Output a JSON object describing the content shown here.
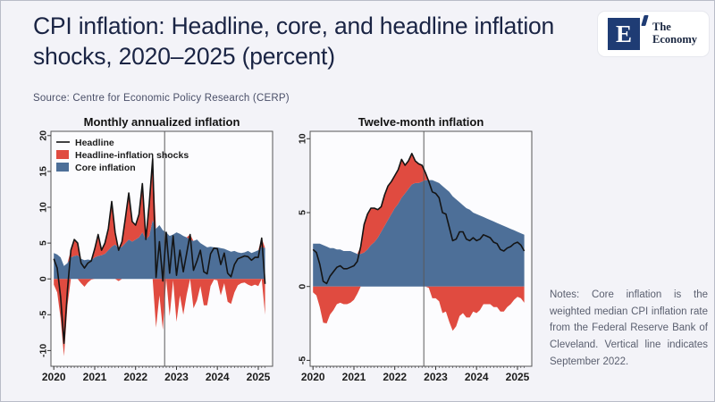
{
  "slide": {
    "title": "CPI inflation: Headline, core, and headline inflation shocks, 2020–2025 (percent)",
    "source": "Source: Centre for Economic Policy Research (CERP)",
    "notes": "Notes: Core inflation is the weighted median CPI inflation rate from the Federal Reserve Bank of Cleveland. Vertical line indicates September 2022.",
    "logo": {
      "mark": "E",
      "name_line1": "The",
      "name_line2": "Economy"
    },
    "colors": {
      "headline": "#141414",
      "shocks": "#e04b40",
      "core": "#4d6f98",
      "title_navy": "#1a2444",
      "vline": "#5b5b5b",
      "frame": "#565656",
      "plot_bg": "#fcfcfe",
      "slide_bg": "#f3f3f8"
    }
  },
  "chart_data": [
    {
      "type": "area",
      "title": "Monthly annualized inflation",
      "x_start": 2020.0,
      "x_step": "monthly",
      "xlim": [
        2019.93,
        2025.35
      ],
      "xticks": [
        2020,
        2021,
        2022,
        2023,
        2024,
        2025
      ],
      "ylim": [
        -12.2,
        20.6
      ],
      "yticks": [
        -10,
        -5,
        0,
        5,
        10,
        15,
        20
      ],
      "vline_x": 2022.71,
      "vline_meaning": "September 2022",
      "legend": [
        "Headline",
        "Headline-inflation shocks",
        "Core inflation"
      ],
      "legend_position": "top-left",
      "series": [
        {
          "name": "Headline",
          "values": [
            2.8,
            1.5,
            -2.5,
            -9.0,
            -1.5,
            4.0,
            5.5,
            5.0,
            2.2,
            1.5,
            2.2,
            2.5,
            4.2,
            6.2,
            4.0,
            5.0,
            7.0,
            10.8,
            6.5,
            4.0,
            5.2,
            8.5,
            12.0,
            8.0,
            7.5,
            9.0,
            13.3,
            5.5,
            10.5,
            16.8,
            0.2,
            5.2,
            -0.3,
            6.5,
            0.8,
            6.0,
            0.5,
            4.0,
            1.0,
            3.6,
            6.2,
            1.2,
            2.5,
            4.0,
            1.0,
            0.7,
            3.5,
            4.3,
            4.2,
            2.0,
            3.6,
            0.8,
            0.3,
            2.0,
            2.8,
            3.0,
            3.2,
            3.1,
            2.6,
            3.0,
            3.0,
            5.7,
            -0.7
          ]
        },
        {
          "name": "Core inflation",
          "values": [
            3.6,
            3.4,
            3.0,
            1.8,
            2.2,
            3.0,
            3.2,
            3.3,
            2.8,
            2.6,
            2.7,
            2.6,
            3.0,
            3.2,
            3.3,
            3.5,
            4.0,
            4.5,
            4.8,
            4.3,
            4.5,
            5.0,
            5.5,
            5.2,
            5.5,
            5.8,
            6.5,
            5.5,
            6.0,
            8.2,
            7.0,
            7.5,
            6.8,
            6.5,
            6.0,
            6.2,
            6.5,
            6.3,
            6.0,
            5.8,
            5.5,
            5.3,
            5.5,
            5.0,
            4.7,
            4.4,
            4.5,
            4.4,
            4.4,
            4.3,
            4.2,
            4.0,
            3.8,
            3.9,
            3.7,
            3.6,
            3.7,
            3.9,
            3.6,
            3.8,
            4.0,
            4.5,
            4.3
          ]
        }
      ],
      "shocks_definition": "headline minus core; drawn above core when positive, below zero when negative"
    },
    {
      "type": "area",
      "title": "Twelve-month inflation",
      "x_start": 2020.0,
      "x_step": "monthly",
      "xlim": [
        2019.93,
        2025.35
      ],
      "xticks": [
        2020,
        2021,
        2022,
        2023,
        2024,
        2025
      ],
      "ylim": [
        -5.4,
        10.5
      ],
      "yticks": [
        -5,
        0,
        5,
        10
      ],
      "vline_x": 2022.71,
      "vline_meaning": "September 2022",
      "legend": null,
      "series": [
        {
          "name": "Headline",
          "values": [
            2.5,
            2.3,
            1.5,
            0.35,
            0.2,
            0.7,
            1.0,
            1.3,
            1.4,
            1.2,
            1.2,
            1.3,
            1.4,
            1.7,
            2.7,
            4.2,
            4.9,
            5.3,
            5.3,
            5.2,
            5.4,
            6.2,
            6.8,
            7.1,
            7.5,
            7.9,
            8.6,
            8.2,
            8.5,
            9.0,
            8.5,
            8.3,
            8.2,
            7.7,
            7.1,
            6.4,
            6.3,
            6.0,
            5.0,
            4.9,
            4.0,
            3.1,
            3.2,
            3.7,
            3.7,
            3.2,
            3.1,
            3.3,
            3.1,
            3.2,
            3.5,
            3.4,
            3.3,
            3.0,
            2.9,
            2.5,
            2.4,
            2.6,
            2.7,
            2.9,
            3.0,
            2.8,
            2.4
          ]
        },
        {
          "name": "Core inflation",
          "values": [
            2.9,
            2.9,
            2.9,
            2.8,
            2.7,
            2.6,
            2.6,
            2.5,
            2.5,
            2.4,
            2.4,
            2.4,
            2.3,
            2.2,
            2.2,
            2.3,
            2.5,
            2.8,
            3.0,
            3.3,
            3.7,
            4.1,
            4.5,
            4.9,
            5.3,
            5.6,
            6.0,
            6.3,
            6.6,
            6.9,
            7.0,
            7.0,
            7.1,
            7.2,
            7.2,
            7.2,
            7.1,
            7.0,
            6.8,
            6.6,
            6.4,
            6.1,
            5.9,
            5.7,
            5.5,
            5.3,
            5.2,
            5.0,
            4.9,
            4.8,
            4.7,
            4.6,
            4.5,
            4.4,
            4.3,
            4.2,
            4.1,
            4.0,
            3.9,
            3.8,
            3.7,
            3.6,
            3.5
          ]
        }
      ],
      "shocks_definition": "headline minus core; drawn above core when positive, below zero when negative"
    }
  ]
}
